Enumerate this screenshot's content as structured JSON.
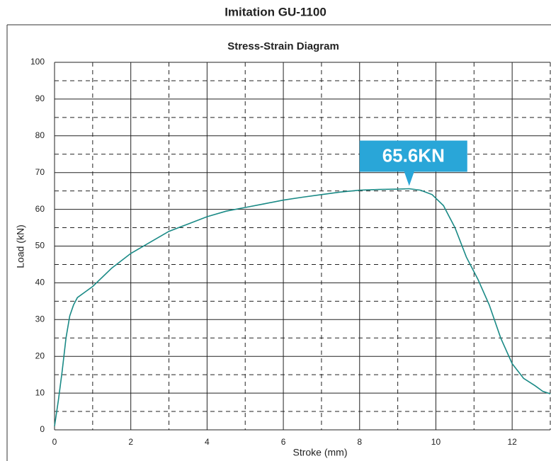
{
  "chart_data": {
    "type": "line",
    "page_title": "Imitation GU-1100",
    "title": "Stress-Strain Diagram",
    "x_label": "Stroke (mm)",
    "y_label": "Load (kN)",
    "xlim": [
      0,
      13
    ],
    "ylim": [
      0,
      100
    ],
    "xticks": [
      0,
      2,
      4,
      6,
      8,
      10,
      12
    ],
    "yticks": [
      0,
      10,
      20,
      30,
      40,
      50,
      60,
      70,
      80,
      90,
      100
    ],
    "grid": true,
    "x": [
      0,
      0.1,
      0.2,
      0.3,
      0.4,
      0.5,
      0.6,
      0.8,
      1,
      1.5,
      2,
      2.5,
      3,
      3.5,
      4,
      4.5,
      5,
      5.5,
      6,
      6.5,
      7,
      7.5,
      8,
      8.5,
      9,
      9.3,
      9.6,
      9.9,
      10.2,
      10.5,
      10.8,
      11.1,
      11.4,
      11.7,
      12,
      12.3,
      12.6,
      12.8,
      13
    ],
    "series": [
      {
        "color": "#1a8a86",
        "values": [
          1,
          8,
          16,
          25,
          31,
          34,
          36,
          37.5,
          39,
          44,
          48,
          51,
          54,
          56,
          58,
          59.5,
          60.5,
          61.5,
          62.5,
          63.3,
          64,
          64.7,
          65.2,
          65.4,
          65.5,
          65.6,
          65.2,
          64,
          61,
          55,
          47,
          41,
          34,
          25,
          18,
          14,
          12,
          10.5,
          9.8
        ]
      }
    ],
    "annotations": [
      {
        "text": "65.6KN",
        "x": 9.3,
        "y": 65.6,
        "color": "#29a6d8"
      }
    ]
  }
}
